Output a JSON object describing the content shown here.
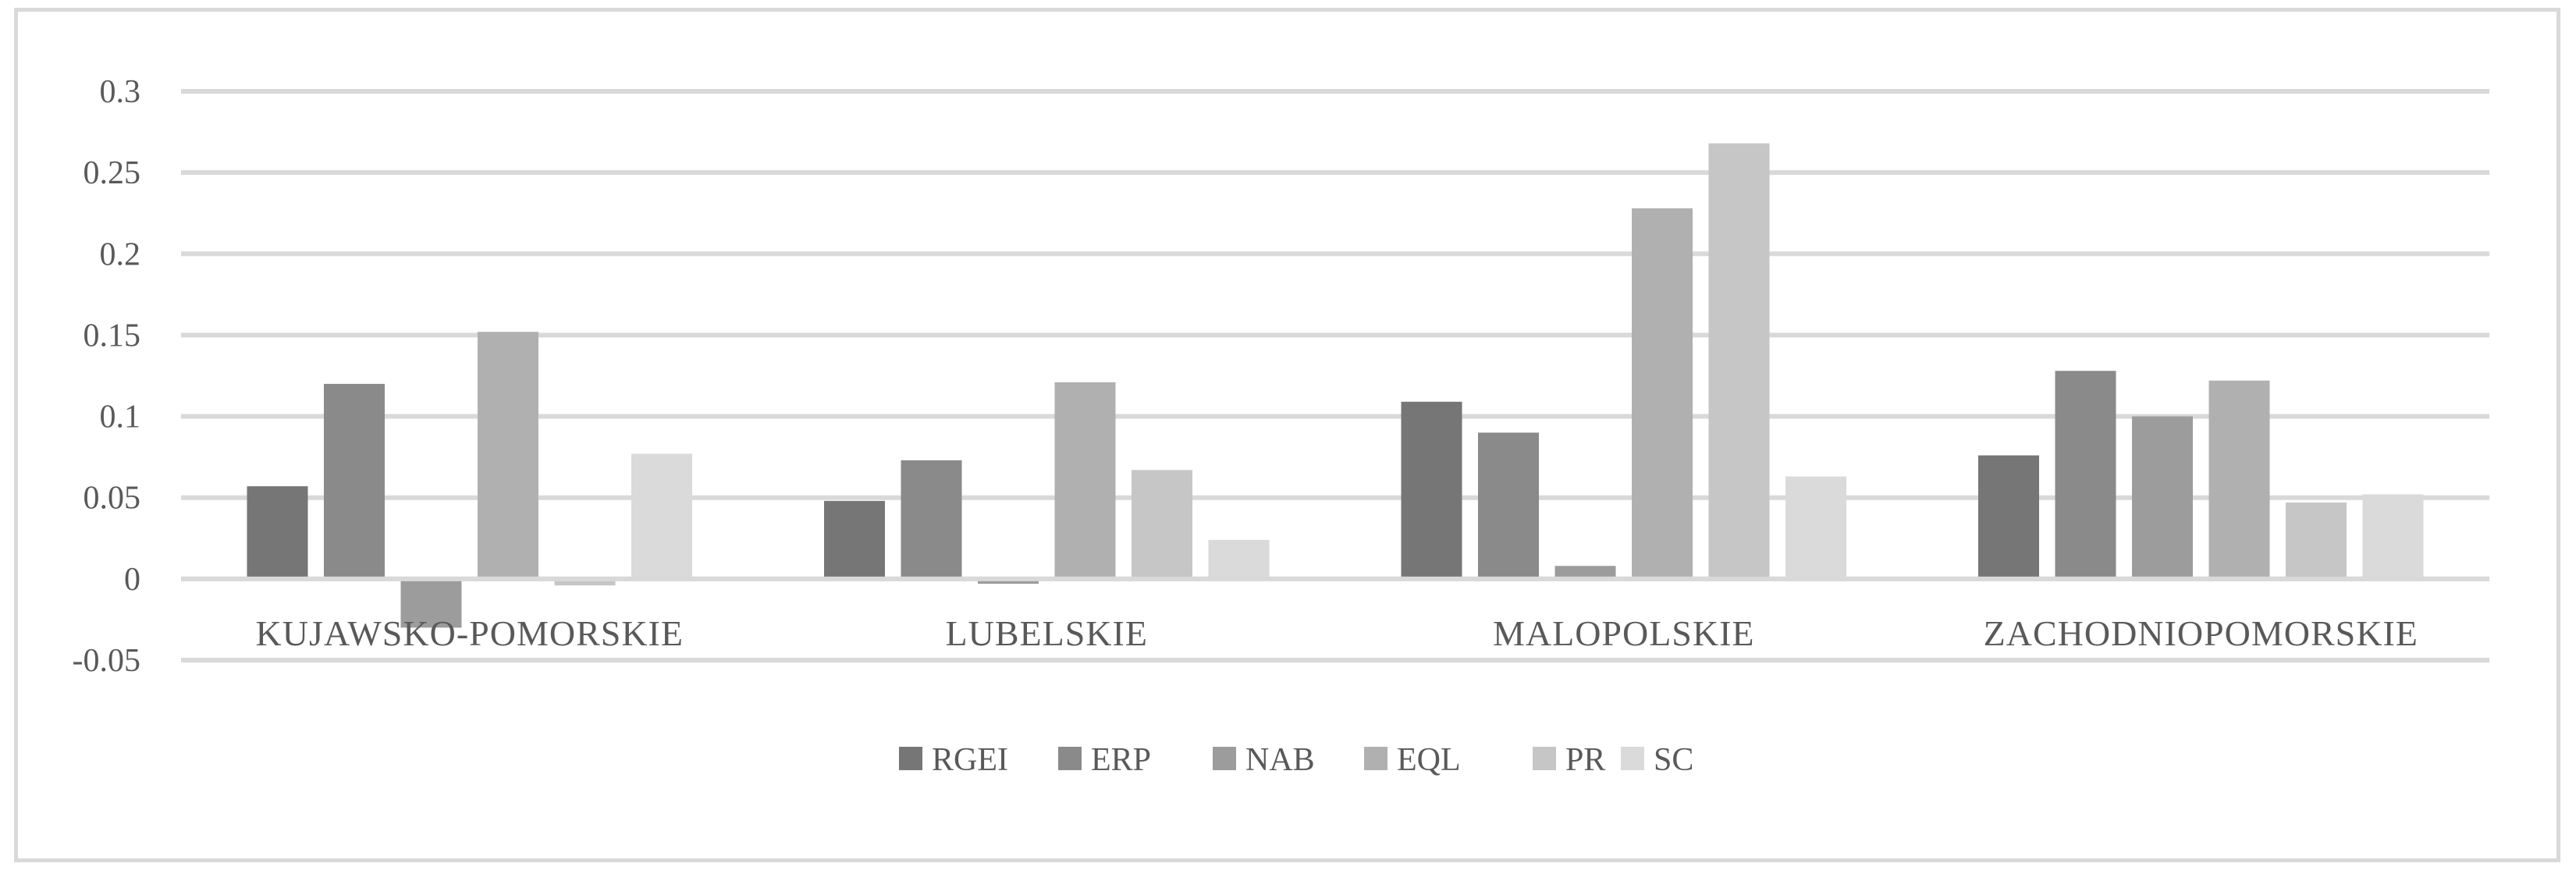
{
  "chart_data": {
    "type": "bar",
    "categories": [
      "KUJAWSKO-POMORSKIE",
      "LUBELSKIE",
      "MALOPOLSKIE",
      "ZACHODNIOPOMORSKIE"
    ],
    "series": [
      {
        "name": "RGEI",
        "color": "#767676",
        "values": [
          0.057,
          0.048,
          0.109,
          0.076
        ]
      },
      {
        "name": "ERP",
        "color": "#8a8a8a",
        "values": [
          0.12,
          0.073,
          0.09,
          0.128
        ]
      },
      {
        "name": "NAB",
        "color": "#9c9c9c",
        "values": [
          -0.03,
          -0.003,
          0.008,
          0.1
        ]
      },
      {
        "name": "EQL",
        "color": "#b0b0b0",
        "values": [
          0.152,
          0.121,
          0.228,
          0.122
        ]
      },
      {
        "name": "PR",
        "color": "#c6c6c6",
        "values": [
          -0.004,
          0.067,
          0.268,
          0.047
        ]
      },
      {
        "name": "SC",
        "color": "#dadada",
        "values": [
          0.077,
          0.024,
          0.063,
          0.052
        ]
      }
    ],
    "yticks": [
      "-0.05",
      "0",
      "0.05",
      "0.1",
      "0.15",
      "0.2",
      "0.25",
      "0.3"
    ],
    "ylim": [
      -0.05,
      0.3
    ],
    "title": "",
    "xlabel": "",
    "ylabel": "",
    "grid": true,
    "legend_position": "bottom"
  }
}
